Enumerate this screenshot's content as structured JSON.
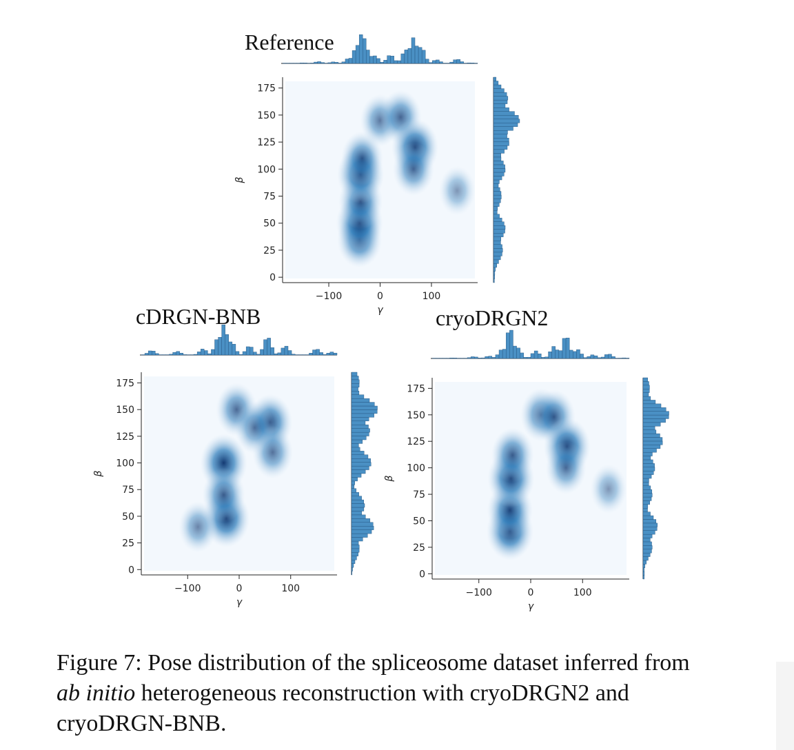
{
  "figure": {
    "caption": {
      "label": "Figure 7:",
      "pre": "Pose distribution of the spliceosome dataset inferred from",
      "italic": "ab initio",
      "post": "heterogeneous reconstruction with cryoDRGN2 and cryoDRGN-BNB."
    }
  },
  "chart_data": [
    {
      "type": "heatmap",
      "title": "Reference",
      "xlabel": "γ",
      "ylabel": "β",
      "xlim": [
        -190,
        190
      ],
      "ylim": [
        -5,
        185
      ],
      "xticks": [
        -100,
        0,
        100
      ],
      "yticks": [
        0,
        25,
        50,
        75,
        100,
        125,
        150,
        175
      ],
      "x_marginal": [
        {
          "x": -150,
          "v": 0.02
        },
        {
          "x": -120,
          "v": 0.06
        },
        {
          "x": -90,
          "v": 0.05
        },
        {
          "x": -60,
          "v": 0.18
        },
        {
          "x": -45,
          "v": 0.6
        },
        {
          "x": -35,
          "v": 1.0
        },
        {
          "x": -25,
          "v": 0.45
        },
        {
          "x": -10,
          "v": 0.25
        },
        {
          "x": 20,
          "v": 0.28
        },
        {
          "x": 50,
          "v": 0.45
        },
        {
          "x": 65,
          "v": 0.85
        },
        {
          "x": 80,
          "v": 0.55
        },
        {
          "x": 110,
          "v": 0.12
        },
        {
          "x": 150,
          "v": 0.14
        },
        {
          "x": 175,
          "v": 0.02
        }
      ],
      "y_marginal": [
        {
          "y": 5,
          "v": 0.05
        },
        {
          "y": 25,
          "v": 0.35
        },
        {
          "y": 45,
          "v": 0.45
        },
        {
          "y": 75,
          "v": 0.3
        },
        {
          "y": 100,
          "v": 0.45
        },
        {
          "y": 125,
          "v": 0.6
        },
        {
          "y": 145,
          "v": 1.0
        },
        {
          "y": 165,
          "v": 0.55
        },
        {
          "y": 180,
          "v": 0.1
        }
      ],
      "density": [
        {
          "x": -40,
          "y": 35,
          "d": 0.85
        },
        {
          "x": -40,
          "y": 50,
          "d": 1.0
        },
        {
          "x": -38,
          "y": 70,
          "d": 0.8
        },
        {
          "x": -38,
          "y": 95,
          "d": 1.0
        },
        {
          "x": -35,
          "y": 110,
          "d": 0.65
        },
        {
          "x": 0,
          "y": 145,
          "d": 0.5
        },
        {
          "x": 40,
          "y": 148,
          "d": 0.65
        },
        {
          "x": 68,
          "y": 120,
          "d": 1.0
        },
        {
          "x": 65,
          "y": 100,
          "d": 0.6
        },
        {
          "x": 150,
          "y": 80,
          "d": 0.25
        }
      ]
    },
    {
      "type": "heatmap",
      "title": "cDRGN-BNB",
      "xlabel": "γ",
      "ylabel": "β",
      "xlim": [
        -190,
        190
      ],
      "ylim": [
        -5,
        185
      ],
      "xticks": [
        -100,
        0,
        100
      ],
      "yticks": [
        0,
        25,
        50,
        75,
        100,
        125,
        150,
        175
      ],
      "x_marginal": [
        {
          "x": -170,
          "v": 0.15
        },
        {
          "x": -120,
          "v": 0.12
        },
        {
          "x": -70,
          "v": 0.2
        },
        {
          "x": -40,
          "v": 0.6
        },
        {
          "x": -30,
          "v": 1.0
        },
        {
          "x": -15,
          "v": 0.45
        },
        {
          "x": 20,
          "v": 0.3
        },
        {
          "x": 55,
          "v": 0.6
        },
        {
          "x": 90,
          "v": 0.3
        },
        {
          "x": 150,
          "v": 0.2
        },
        {
          "x": 180,
          "v": 0.1
        }
      ],
      "y_marginal": [
        {
          "y": 20,
          "v": 0.3
        },
        {
          "y": 40,
          "v": 0.85
        },
        {
          "y": 60,
          "v": 0.5
        },
        {
          "y": 100,
          "v": 0.75
        },
        {
          "y": 130,
          "v": 0.7
        },
        {
          "y": 150,
          "v": 1.0
        },
        {
          "y": 175,
          "v": 0.3
        }
      ],
      "density": [
        {
          "x": -30,
          "y": 100,
          "d": 1.0
        },
        {
          "x": -25,
          "y": 48,
          "d": 1.0
        },
        {
          "x": -30,
          "y": 70,
          "d": 0.7
        },
        {
          "x": -5,
          "y": 150,
          "d": 0.6
        },
        {
          "x": 60,
          "y": 138,
          "d": 0.85
        },
        {
          "x": 65,
          "y": 110,
          "d": 0.55
        },
        {
          "x": 30,
          "y": 133,
          "d": 0.5
        },
        {
          "x": -80,
          "y": 40,
          "d": 0.4
        }
      ]
    },
    {
      "type": "heatmap",
      "title": "cryoDRGN2",
      "xlabel": "γ",
      "ylabel": "β",
      "xlim": [
        -190,
        190
      ],
      "ylim": [
        -5,
        185
      ],
      "xticks": [
        -100,
        0,
        100
      ],
      "yticks": [
        0,
        25,
        50,
        75,
        100,
        125,
        150,
        175
      ],
      "x_marginal": [
        {
          "x": -150,
          "v": 0.02
        },
        {
          "x": -110,
          "v": 0.06
        },
        {
          "x": -80,
          "v": 0.08
        },
        {
          "x": -55,
          "v": 0.3
        },
        {
          "x": -40,
          "v": 1.0
        },
        {
          "x": -25,
          "v": 0.35
        },
        {
          "x": 10,
          "v": 0.25
        },
        {
          "x": 45,
          "v": 0.4
        },
        {
          "x": 68,
          "v": 0.75
        },
        {
          "x": 90,
          "v": 0.3
        },
        {
          "x": 120,
          "v": 0.12
        },
        {
          "x": 150,
          "v": 0.15
        },
        {
          "x": 180,
          "v": 0.02
        }
      ],
      "y_marginal": [
        {
          "y": 0,
          "v": 0.05
        },
        {
          "y": 25,
          "v": 0.35
        },
        {
          "y": 45,
          "v": 0.55
        },
        {
          "y": 75,
          "v": 0.35
        },
        {
          "y": 100,
          "v": 0.45
        },
        {
          "y": 125,
          "v": 0.75
        },
        {
          "y": 150,
          "v": 1.0
        },
        {
          "y": 175,
          "v": 0.25
        }
      ],
      "density": [
        {
          "x": -40,
          "y": 40,
          "d": 1.0
        },
        {
          "x": -40,
          "y": 60,
          "d": 0.9
        },
        {
          "x": -38,
          "y": 90,
          "d": 1.0
        },
        {
          "x": -35,
          "y": 112,
          "d": 0.7
        },
        {
          "x": 20,
          "y": 150,
          "d": 0.6
        },
        {
          "x": 45,
          "y": 148,
          "d": 0.7
        },
        {
          "x": 70,
          "y": 120,
          "d": 1.0
        },
        {
          "x": 68,
          "y": 100,
          "d": 0.55
        },
        {
          "x": 150,
          "y": 80,
          "d": 0.25
        }
      ]
    }
  ]
}
